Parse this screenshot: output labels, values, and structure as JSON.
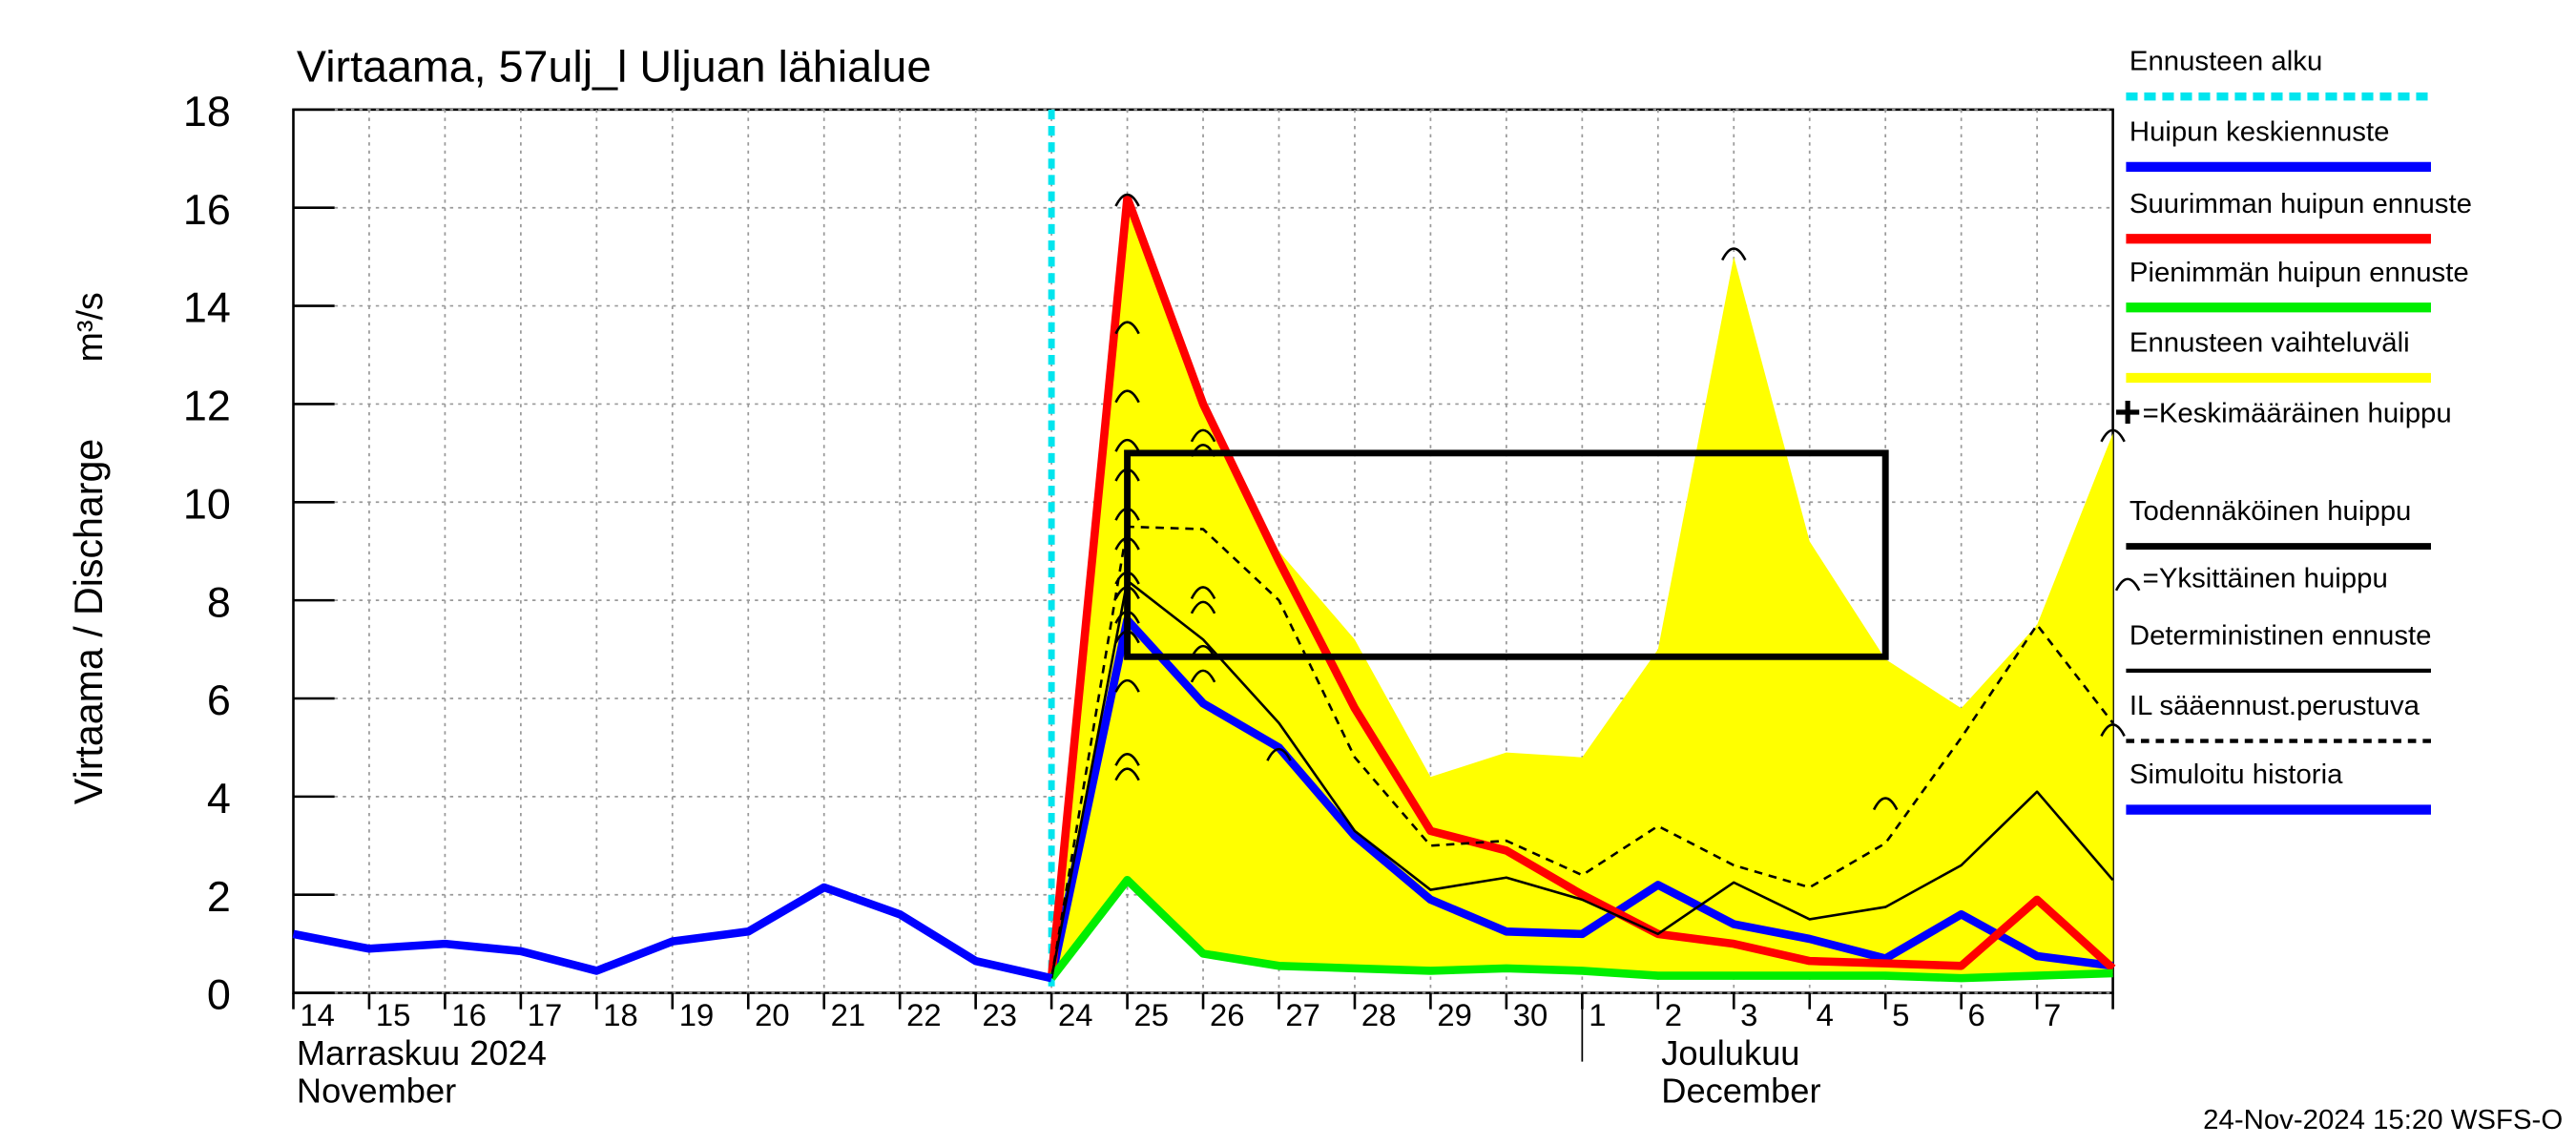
{
  "chart_data": {
    "type": "line",
    "title": "Virtaama, 57ulj_l Uljuan lähialue",
    "y_label": "Virtaama / Discharge",
    "y_unit": "m³/s",
    "timestamp": "24-Nov-2024 15:20 WSFS-O",
    "categories": [
      "14",
      "15",
      "16",
      "17",
      "18",
      "19",
      "20",
      "21",
      "22",
      "23",
      "24",
      "25",
      "26",
      "27",
      "28",
      "29",
      "30",
      "1",
      "2",
      "3",
      "4",
      "5",
      "6",
      "7",
      null
    ],
    "month_labels": [
      {
        "text": "Marraskuu 2024",
        "en": "November",
        "at": "14"
      },
      {
        "text": "Joulukuu",
        "en": "December",
        "at": "2"
      }
    ],
    "month_separator": "1",
    "ylim": [
      0,
      18
    ],
    "yticks": [
      0,
      2,
      4,
      6,
      8,
      10,
      12,
      14,
      16,
      18
    ],
    "grid": true,
    "series": [
      {
        "name": "Ennusteen alku",
        "color": "#00e5ee",
        "kind": "vline",
        "at": "24"
      },
      {
        "name": "Huipun keskiennuste",
        "color": "#0000ff",
        "kind": "line",
        "style": "thick",
        "values": [
          null,
          null,
          null,
          null,
          null,
          null,
          null,
          null,
          null,
          null,
          0.3,
          7.6,
          5.9,
          5.0,
          3.2,
          1.9,
          1.25,
          1.2,
          2.2,
          1.4,
          1.1,
          0.7,
          1.6,
          0.75,
          0.55
        ]
      },
      {
        "name": "Suurimman huipun ennuste",
        "color": "#ff0000",
        "kind": "line",
        "style": "thick",
        "values": [
          null,
          null,
          null,
          null,
          null,
          null,
          null,
          null,
          null,
          null,
          0.3,
          16.2,
          12.0,
          8.8,
          5.8,
          3.3,
          2.9,
          2.0,
          1.2,
          1.0,
          0.65,
          0.6,
          0.55,
          1.9,
          0.5
        ]
      },
      {
        "name": "Pienimmän huipun ennuste",
        "color": "#00ee00",
        "kind": "line",
        "style": "thick",
        "values": [
          null,
          null,
          null,
          null,
          null,
          null,
          null,
          null,
          null,
          null,
          0.3,
          2.3,
          0.8,
          0.55,
          0.5,
          0.45,
          0.5,
          0.45,
          0.35,
          0.35,
          0.35,
          0.35,
          0.3,
          0.35,
          0.4
        ]
      },
      {
        "name": "Ennusteen vaihteluväli",
        "color": "#ffff00",
        "kind": "range",
        "values": [
          null,
          null,
          null,
          null,
          null,
          null,
          null,
          null,
          null,
          null,
          0.3,
          16.2,
          12.0,
          9.0,
          7.2,
          4.4,
          4.9,
          4.8,
          7.0,
          15.0,
          9.2,
          6.8,
          5.8,
          7.5,
          11.4
        ],
        "low": [
          null,
          null,
          null,
          null,
          null,
          null,
          null,
          null,
          null,
          null,
          0.3,
          2.3,
          0.8,
          0.55,
          0.5,
          0.45,
          0.5,
          0.45,
          0.35,
          0.35,
          0.35,
          0.35,
          0.3,
          0.35,
          0.4
        ]
      },
      {
        "name": "=Keskimääräinen huippu",
        "color": "#000000",
        "kind": "plus"
      },
      {
        "name": "Todennäköinen huippu",
        "color": "#000000",
        "kind": "box",
        "start": "25",
        "end": "5",
        "low": 6.85,
        "high": 11.0
      },
      {
        "name": "=Yksittäinen huippu",
        "color": "#000000",
        "kind": "arcs",
        "values": [
          [],
          [],
          [],
          [],
          [],
          [],
          [],
          [],
          [],
          [],
          [],
          [
            16.2,
            13.6,
            12.2,
            11.2,
            10.6,
            9.8,
            9.2,
            8.5,
            8.2,
            7.7,
            7.3,
            6.3,
            4.8,
            4.5
          ],
          [
            11.4,
            11.1,
            8.2,
            7.9,
            7.0,
            6.5
          ],
          [
            4.9
          ],
          [],
          [],
          [],
          [],
          [],
          [
            15.1
          ],
          [],
          [
            3.9
          ],
          [],
          [],
          [
            11.4,
            5.4
          ]
        ]
      },
      {
        "name": "Deterministinen ennuste",
        "color": "#000000",
        "kind": "line",
        "style": "thin",
        "values": [
          null,
          null,
          null,
          null,
          null,
          null,
          null,
          null,
          null,
          null,
          0.3,
          8.4,
          7.2,
          5.5,
          3.3,
          2.1,
          2.35,
          1.9,
          1.2,
          2.25,
          1.5,
          1.75,
          2.6,
          4.1,
          2.3
        ]
      },
      {
        "name": "IL sääennust.perustuva",
        "color": "#000000",
        "kind": "line",
        "style": "dashed",
        "values": [
          null,
          null,
          null,
          null,
          null,
          null,
          null,
          null,
          null,
          null,
          0.3,
          9.5,
          9.45,
          8.0,
          4.8,
          3.0,
          3.1,
          2.4,
          3.4,
          2.6,
          2.15,
          3.05,
          5.2,
          7.5,
          5.5
        ]
      },
      {
        "name": "Simuloitu historia",
        "color": "#0000ff",
        "kind": "line",
        "style": "thick",
        "values": [
          1.2,
          0.9,
          1.0,
          0.85,
          0.45,
          1.05,
          1.25,
          2.15,
          1.6,
          0.65,
          0.3,
          null,
          null,
          null,
          null,
          null,
          null,
          null,
          null,
          null,
          null,
          null,
          null,
          null,
          null
        ]
      }
    ]
  }
}
